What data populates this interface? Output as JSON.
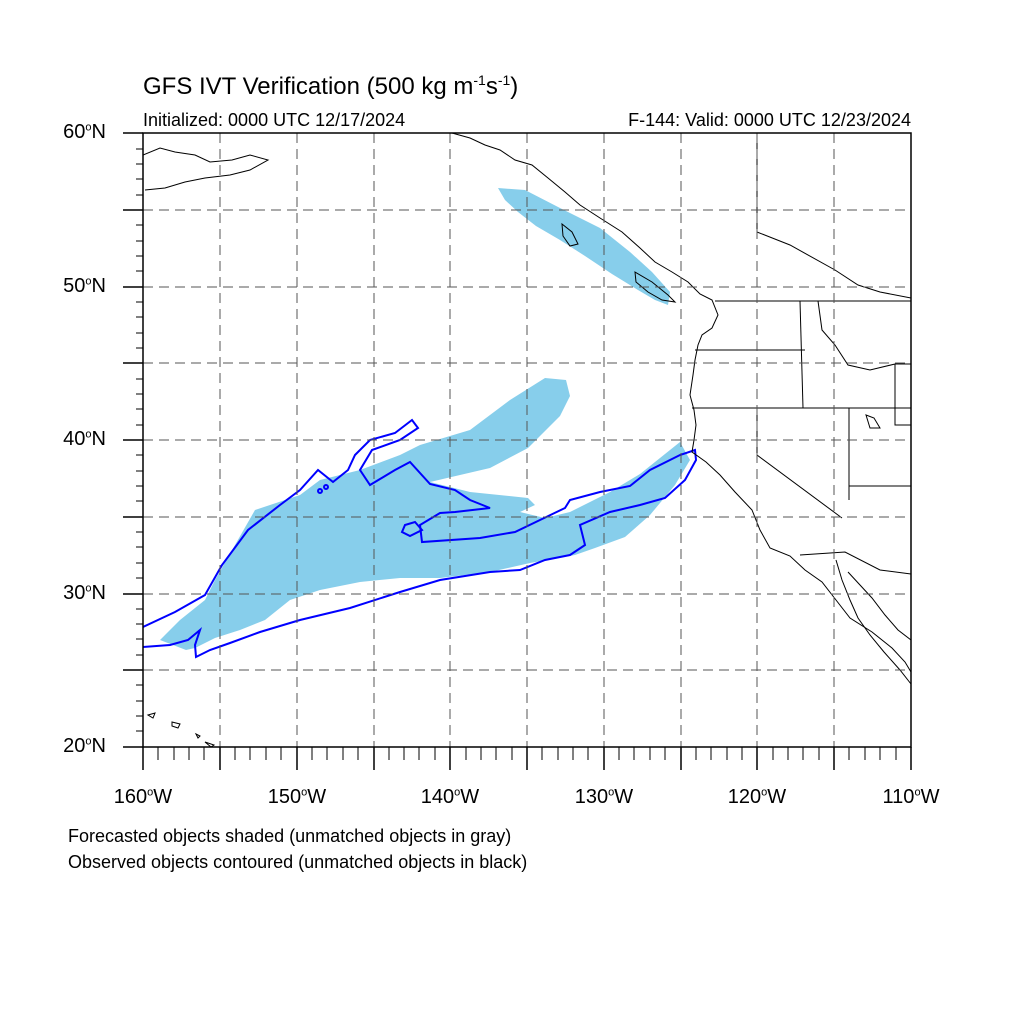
{
  "title": {
    "prefix": "GFS IVT Verification (500 kg m",
    "exp1": "-1",
    "mid": "s",
    "exp2": "-1",
    "suffix": ")"
  },
  "subtitle_left": "Initialized: 0000 UTC 12/17/2024",
  "subtitle_right": "F-144: Valid: 0000 UTC 12/23/2024",
  "map": {
    "projection": "lat-lon",
    "lon_range": [
      -160,
      -110
    ],
    "lat_range": [
      20,
      60
    ],
    "grid": "dashed every 5 degrees",
    "forecast_fill_color": "#87CEEB",
    "observed_contour_color": "#0000FF",
    "coast_color": "#000000"
  },
  "lat_ticks": [
    {
      "deg": "20",
      "hem": "N"
    },
    {
      "deg": "30",
      "hem": "N"
    },
    {
      "deg": "40",
      "hem": "N"
    },
    {
      "deg": "50",
      "hem": "N"
    },
    {
      "deg": "60",
      "hem": "N"
    }
  ],
  "lon_ticks": [
    {
      "deg": "160",
      "hem": "W"
    },
    {
      "deg": "150",
      "hem": "W"
    },
    {
      "deg": "140",
      "hem": "W"
    },
    {
      "deg": "130",
      "hem": "W"
    },
    {
      "deg": "120",
      "hem": "W"
    },
    {
      "deg": "110",
      "hem": "W"
    }
  ],
  "degree_symbol": "o",
  "notes": [
    "Forecasted objects shaded (unmatched objects in gray)",
    "Observed objects contoured (unmatched objects in black)"
  ]
}
